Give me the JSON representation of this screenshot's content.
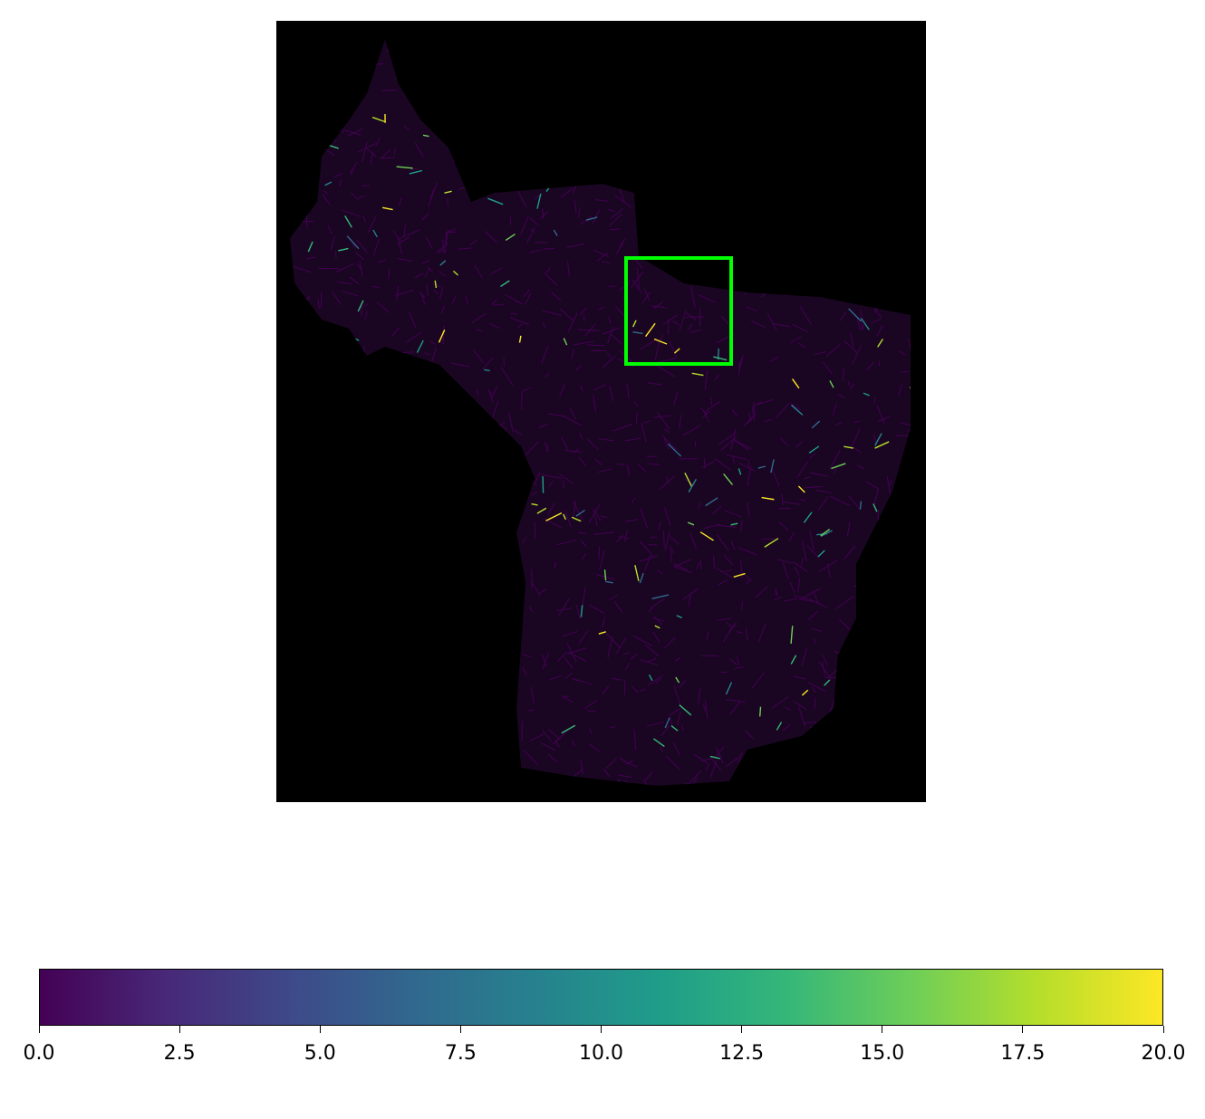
{
  "map": {
    "background_color": "#000000",
    "highlight_box": {
      "color": "#00ff00"
    },
    "network_base_color": "#440154"
  },
  "colorbar": {
    "colormap": "viridis",
    "min": 0.0,
    "max": 20.0,
    "tick_labels": [
      "0.0",
      "2.5",
      "5.0",
      "7.5",
      "10.0",
      "12.5",
      "15.0",
      "17.5",
      "20.0"
    ],
    "colors": [
      "#440154",
      "#482878",
      "#3e4989",
      "#31688e",
      "#26828e",
      "#1f9e89",
      "#35b779",
      "#6ece58",
      "#b5de2b",
      "#fde725"
    ]
  }
}
